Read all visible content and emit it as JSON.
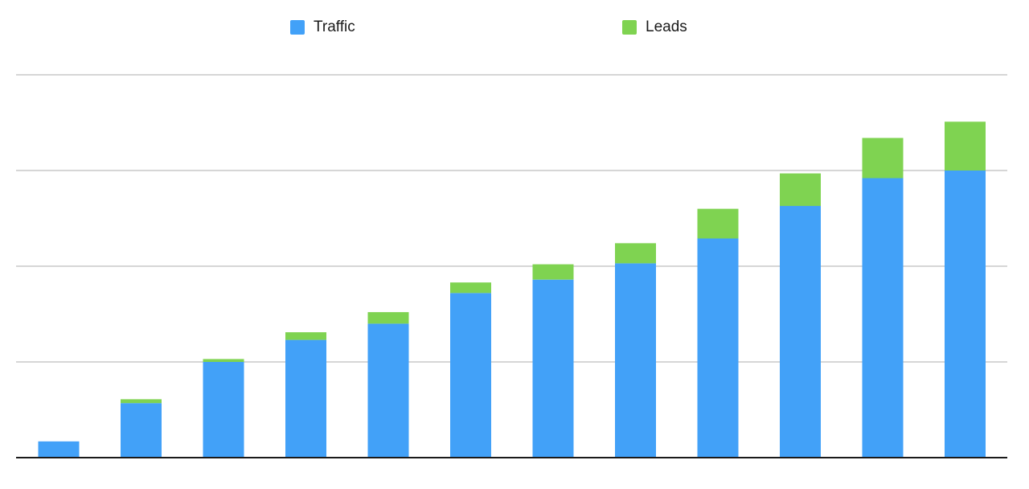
{
  "chart_data": {
    "type": "bar",
    "stacked": true,
    "title": "",
    "xlabel": "",
    "ylabel": "",
    "ylim": [
      0,
      40
    ],
    "grid": true,
    "legend_position": "top",
    "x_count": 12,
    "series": [
      {
        "name": "Traffic",
        "color": "#42a1f8",
        "values": [
          1.7,
          5.7,
          10.0,
          12.3,
          14.0,
          17.2,
          18.6,
          20.3,
          22.9,
          26.3,
          29.2,
          30.0
        ]
      },
      {
        "name": "Leads",
        "color": "#7fd351",
        "values": [
          0,
          0.4,
          0.3,
          0.8,
          1.2,
          1.1,
          1.6,
          2.1,
          3.1,
          3.4,
          4.2,
          5.1
        ]
      }
    ]
  }
}
